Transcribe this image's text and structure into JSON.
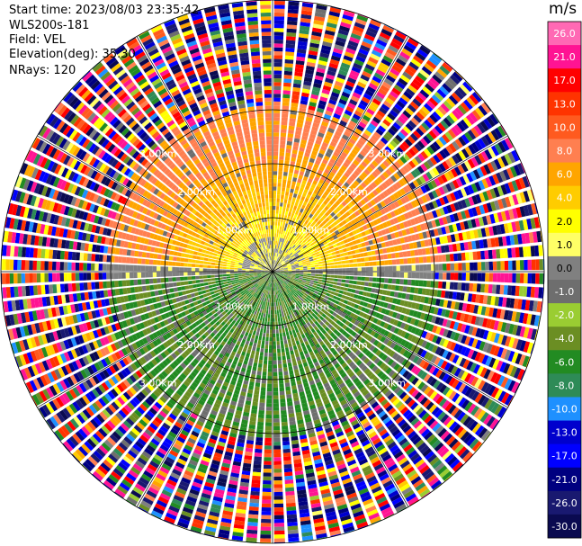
{
  "info": {
    "start_time": "Start time: 2023/08/03 23:35:42",
    "station": "WLS200s-181",
    "field": "Field: VEL",
    "elevation": "Elevation(deg): 35.30",
    "nrays": "NRays: 120"
  },
  "colorbar": {
    "unit": "m/s",
    "ticks": [
      "26.0",
      "21.0",
      "17.0",
      "13.0",
      "10.0",
      "8.0",
      "6.0",
      "4.0",
      "2.0",
      "1.0",
      "0.0",
      "-1.0",
      "-2.0",
      "-4.0",
      "-6.0",
      "-8.0",
      "-10.0",
      "-13.0",
      "-17.0",
      "-21.0",
      "-26.0",
      "-30.0"
    ],
    "colors": [
      "#ff69b4",
      "#ff1493",
      "#ff0000",
      "#ff3300",
      "#ff5a1f",
      "#ff7f50",
      "#ffa500",
      "#ffcc00",
      "#ffff00",
      "#ffff66",
      "#808080",
      "#6e6e6e",
      "#9acd32",
      "#6b8e23",
      "#228b22",
      "#2e8b57",
      "#1e90ff",
      "#0000cd",
      "#0000ff",
      "#000080",
      "#191970",
      "#0a0a50"
    ]
  },
  "chart_data": {
    "type": "heatmap",
    "projection": "polar PPI",
    "field": "VEL",
    "n_rays": 120,
    "range_rings_km": [
      1.0,
      2.0,
      3.0
    ],
    "ring_labels": [
      "1.00km",
      "2.00km",
      "3.00km"
    ],
    "value_range": [
      -30,
      30
    ],
    "sectors": [
      {
        "azimuth_deg": [
          270,
          90
        ],
        "region": "north half",
        "range_km": [
          0,
          3.2
        ],
        "velocity_ms": [
          2,
          10
        ]
      },
      {
        "azimuth_deg": [
          90,
          270
        ],
        "region": "south half",
        "range_km": [
          0,
          3.2
        ],
        "velocity_ms": [
          -6,
          -2
        ]
      },
      {
        "region": "outer noise",
        "range_km": [
          3.2,
          5.0
        ],
        "velocity_ms": [
          -30,
          26
        ]
      }
    ]
  }
}
